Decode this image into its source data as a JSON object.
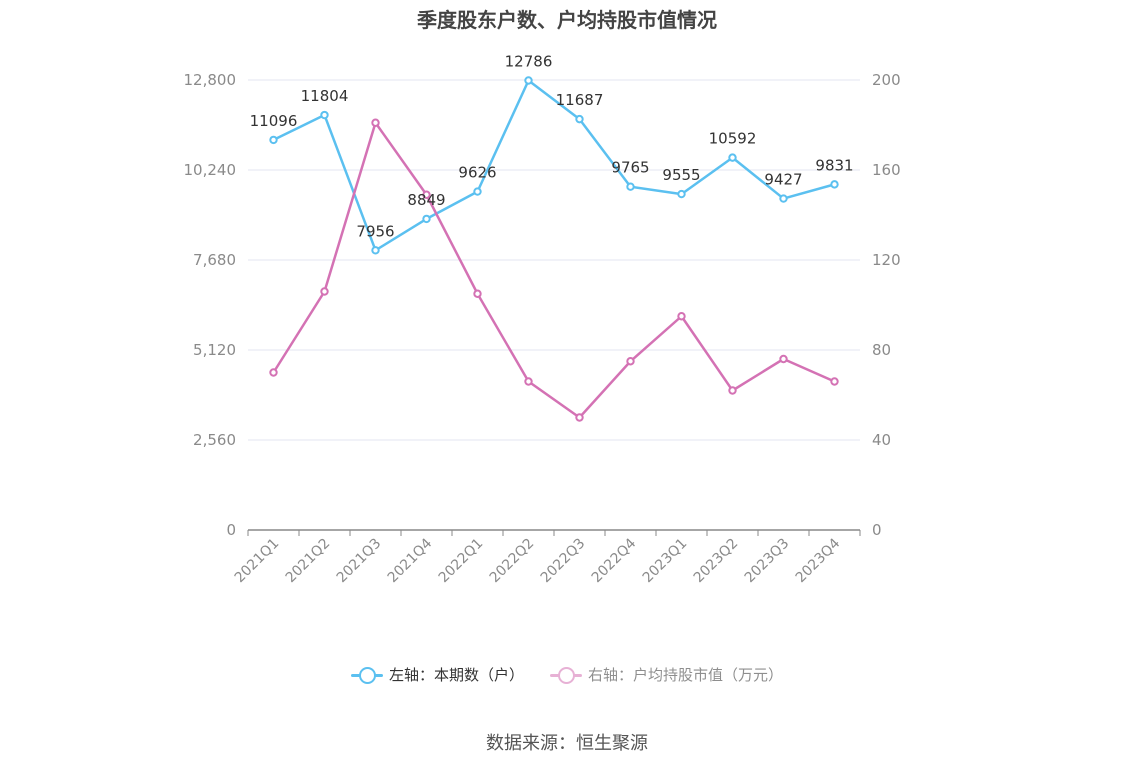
{
  "chart_data": {
    "type": "line",
    "title": "季度股东户数、户均持股市值情况",
    "categories": [
      "2021Q1",
      "2021Q2",
      "2021Q3",
      "2021Q4",
      "2022Q1",
      "2022Q2",
      "2022Q3",
      "2022Q4",
      "2023Q1",
      "2023Q2",
      "2023Q3",
      "2023Q4"
    ],
    "left_axis": {
      "ylim": [
        0,
        12800
      ],
      "ticks": [
        "0",
        "2,560",
        "5,120",
        "7,680",
        "10,240",
        "12,800"
      ],
      "tick_values": [
        0,
        2560,
        5120,
        7680,
        10240,
        12800
      ]
    },
    "right_axis": {
      "ylim": [
        0,
        200
      ],
      "ticks": [
        "0",
        "40",
        "80",
        "120",
        "160",
        "200"
      ],
      "tick_values": [
        0,
        40,
        80,
        120,
        160,
        200
      ]
    },
    "series": [
      {
        "name": "左轴：本期数（户）",
        "axis": "left",
        "color": "#5bc0f0",
        "values": [
          11096,
          11804,
          7956,
          8849,
          9626,
          12786,
          11687,
          9765,
          9555,
          10592,
          9427,
          9831
        ],
        "labels": [
          "11096",
          "11804",
          "7956",
          "8849",
          "9626",
          "12786",
          "11687",
          "9765",
          "9555",
          "10592",
          "9427",
          "9831"
        ]
      },
      {
        "name": "右轴：户均持股市值（万元）",
        "axis": "right",
        "color": "#d472b4",
        "values": [
          70,
          106,
          181,
          149,
          105,
          66,
          50,
          75,
          95,
          62,
          76,
          66
        ]
      }
    ],
    "grid": true,
    "legend_position": "bottom"
  },
  "source": "数据来源：恒生聚源"
}
